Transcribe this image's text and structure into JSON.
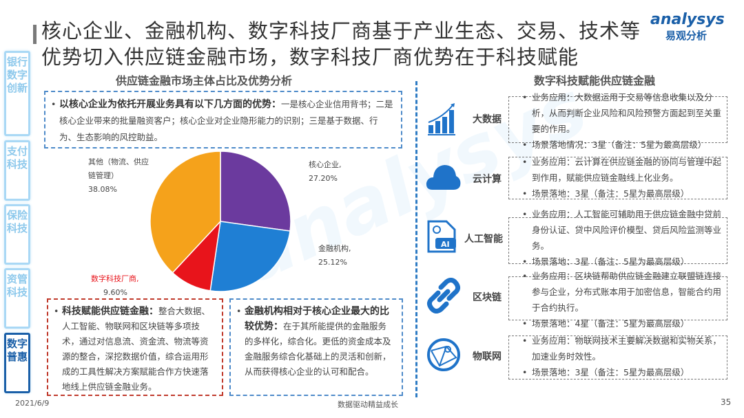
{
  "title": "核心企业、金融机构、数字科技厂商基于产业生态、交易、技术等优势切入供应链金融市场，数字科技厂商优势在于科技赋能",
  "logo": {
    "brand": "analysys",
    "cn": "易观分析"
  },
  "sidebar": [
    {
      "label": "银行数字创新"
    },
    {
      "label": "支付科技"
    },
    {
      "label": "保险科技"
    },
    {
      "label": "资管科技"
    },
    {
      "label": "数字普惠",
      "active": true
    }
  ],
  "left": {
    "subtitle": "供应链金融市场主体占比及优势分析",
    "top_box": {
      "bold": "以核心企业为依托开展业务具有以下几方面的优势：",
      "text": "一是核心企业信用背书；二是核心企业带来的批量融资客户；核心企业对企业隐形能力的识别；三是基于数据、行为、生态影响的风控助益。"
    },
    "box_red": {
      "bold": "科技赋能供应链金融：",
      "text": "整合大数据、人工智能、物联网和区块链等多项技术，通过对信息流、资金流、物流等资源的整合，深挖数据价值，综合运用形成的工具性解决方案赋能合作方快速落地线上供应链金融业务。"
    },
    "box_blue": {
      "bold": "金融机构相对于核心企业最大的比较优势：",
      "text": "在于其所能提供的金融服务的多样化，综合化。更低的资金成本及金融服务综合化基础上的灵活和创新，从而获得核心企业的认可和配合。"
    }
  },
  "chart_data": {
    "type": "pie",
    "slices": [
      {
        "label": "核心企业,",
        "value": 27.2,
        "display": "27.20%",
        "color": "#6b3a9e"
      },
      {
        "label": "金融机构,",
        "value": 25.12,
        "display": "25.12%",
        "color": "#1f7fd4"
      },
      {
        "label": "数字科技厂商,",
        "value": 9.6,
        "display": "9.60%",
        "color": "#e8141b",
        "label_color": "#e8141b"
      },
      {
        "label": "其他（物流、供应链管理）",
        "value": 38.08,
        "display": "38.08%",
        "color": "#f5a21b"
      }
    ]
  },
  "right": {
    "subtitle": "数字科技赋能供应链金融",
    "techs": [
      {
        "name": "大数据",
        "icon": "bar-chart-growth-icon",
        "lines": [
          "业务应用：大数据运用于交易等信息收集以及分析，从而判断企业风险和风险预警方面起到至关重要的作用。",
          "场景落地情况：3星（备注：5星为最高层级）"
        ]
      },
      {
        "name": "云计算",
        "icon": "cloud-icon",
        "lines": [
          "业务应用：云计算在供应链金融的协同与管理中起到作用，赋能供应链金融线上化业务。",
          "场景落地：3星（备注：5星为最高层级）"
        ]
      },
      {
        "name": "人工智能",
        "icon": "ai-document-icon",
        "lines": [
          "业务应用：人工智能可辅助用于供应链金融中贷前身份认证、贷中风险评价模型、贷后风险监测等业务。",
          "场景落地：3星（备注：5星为最高层级）"
        ]
      },
      {
        "name": "区块链",
        "icon": "chain-link-icon",
        "lines": [
          "业务应用：区块链帮助供应链金融建立联盟链连接参与企业，分布式账本用于加密信息，智能合约用于合约执行。",
          "场景落地：4星（备注：5星为最高层级）"
        ]
      },
      {
        "name": "物联网",
        "icon": "globe-network-icon",
        "lines": [
          "业务应用：物联网技术主要解决数据和实物关系，加速业务时效性。",
          "场景落地：3星（备注：5星为最高层级）"
        ]
      }
    ]
  },
  "footer": {
    "date": "2021/6/9",
    "slogan": "数据驱动精益成长",
    "page": "35"
  },
  "colors": {
    "accent": "#1f7fd4",
    "red": "#c0392b"
  }
}
